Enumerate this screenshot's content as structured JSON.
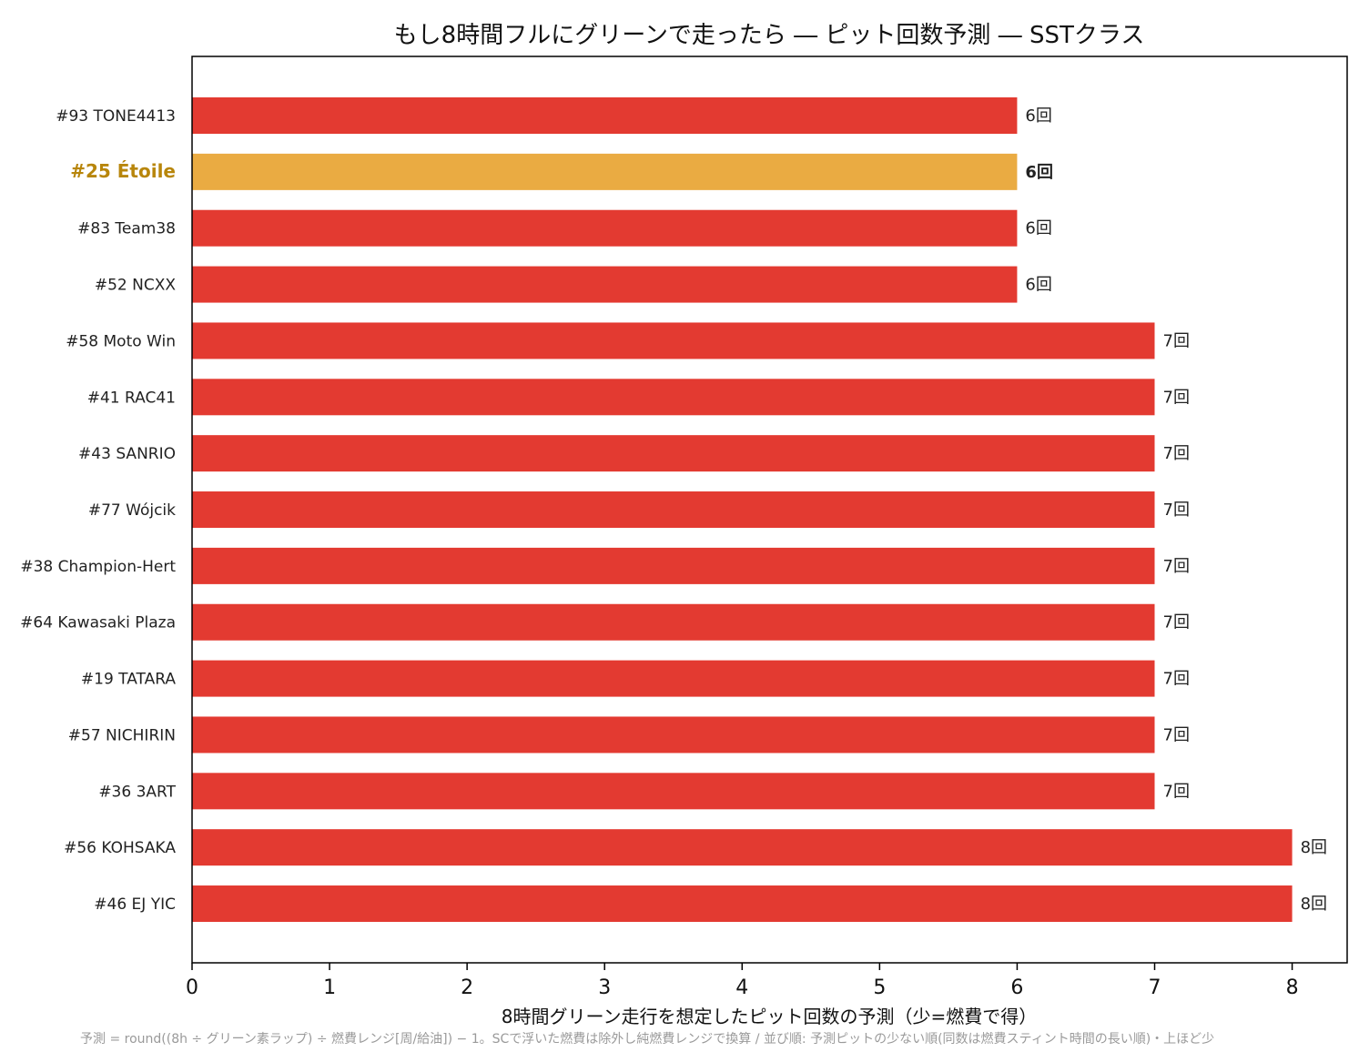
{
  "chart_data": {
    "type": "bar",
    "orientation": "horizontal",
    "title": "もし8時間フルにグリーンで走ったら ― ピット回数予測 ― SSTクラス",
    "xlabel": "8時間グリーン走行を想定したピット回数の予測（少=燃費で得）",
    "ylabel": "",
    "footnote": "予測 = round((8h ÷ グリーン素ラップ) ÷ 燃費レンジ[周/給油]) − 1。SCで浮いた燃費は除外し純燃費レンジで換算 / 並び順: 予測ピットの少ない順(同数は燃費スティント時間の長い順)・上ほど少",
    "xlim": [
      0,
      8.4
    ],
    "xticks": [
      0,
      1,
      2,
      3,
      4,
      5,
      6,
      7,
      8
    ],
    "grid": false,
    "legend": "none",
    "value_suffix": "回",
    "colors": {
      "bar": "#e33a31",
      "highlight_bar": "#eaab42",
      "highlight_label": "#b8860b"
    },
    "highlight_index": 1,
    "categories": [
      "#93 TONE4413",
      "#25 Étoile",
      "#83 Team38",
      "#52 NCXX",
      "#58 Moto Win",
      "#41 RAC41",
      "#43 SANRIO",
      "#77 Wójcik",
      "#38 Champion-Hert",
      "#64 Kawasaki Plaza",
      "#19 TATARA",
      "#57 NICHIRIN",
      "#36 3ART",
      "#56 KOHSAKA",
      "#46 EJ YIC"
    ],
    "values": [
      6,
      6,
      6,
      6,
      7,
      7,
      7,
      7,
      7,
      7,
      7,
      7,
      7,
      8,
      8
    ],
    "data_labels": [
      "6回",
      "6回",
      "6回",
      "6回",
      "7回",
      "7回",
      "7回",
      "7回",
      "7回",
      "7回",
      "7回",
      "7回",
      "7回",
      "8回",
      "8回"
    ]
  }
}
